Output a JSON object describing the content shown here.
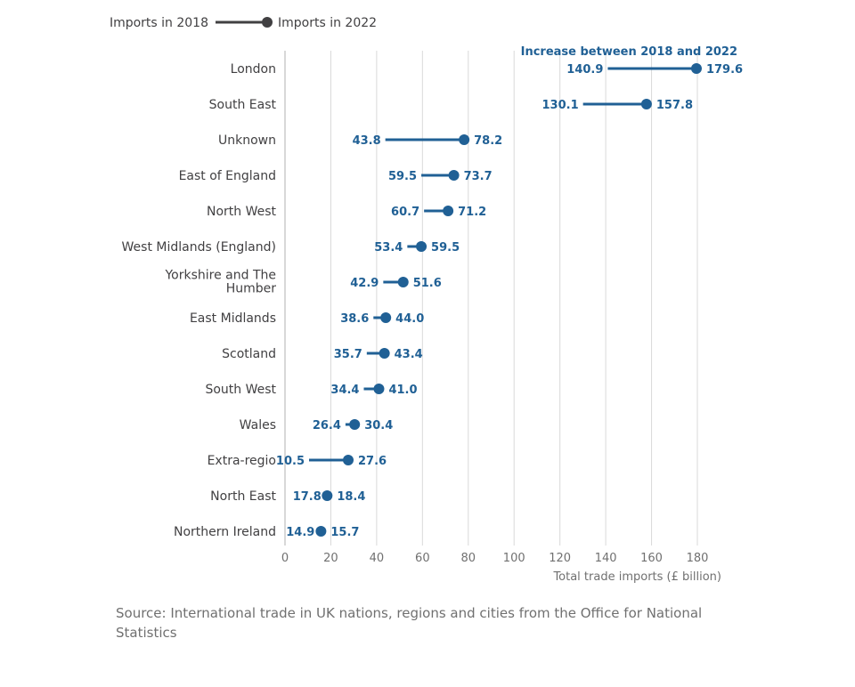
{
  "chart_data": {
    "type": "dumbbell",
    "legend": {
      "start_label": "Imports in 2018",
      "end_label": "Imports in 2022",
      "placement": "top-left"
    },
    "annotation": "Increase between 2018 and 2022",
    "xlabel": "Total trade imports (£ billion)",
    "xlim": [
      0,
      180
    ],
    "xticks": [
      0,
      20,
      40,
      60,
      80,
      100,
      120,
      140,
      160,
      180
    ],
    "grid": true,
    "categories": [
      "London",
      "South East",
      "Unknown",
      "East of England",
      "North West",
      "West Midlands (England)",
      [
        "Yorkshire and The",
        "Humber"
      ],
      "East Midlands",
      "Scotland",
      "South West",
      "Wales",
      "Extra-regio",
      "North East",
      "Northern Ireland"
    ],
    "series": [
      {
        "name": "Imports in 2018",
        "values": [
          140.9,
          130.1,
          43.8,
          59.5,
          60.7,
          53.4,
          42.9,
          38.6,
          35.7,
          34.4,
          26.4,
          10.5,
          17.8,
          14.9
        ]
      },
      {
        "name": "Imports in 2022",
        "values": [
          179.6,
          157.8,
          78.2,
          73.7,
          71.2,
          59.5,
          51.6,
          44.0,
          43.4,
          41.0,
          30.4,
          27.6,
          18.4,
          15.7
        ]
      }
    ],
    "value_labels_2018": [
      "140.9",
      "130.1",
      "43.8",
      "59.5",
      "60.7",
      "53.4",
      "42.9",
      "38.6",
      "35.7",
      "34.4",
      "26.4",
      "10.5",
      "17.8",
      "14.9"
    ],
    "value_labels_2022": [
      "179.6",
      "157.8",
      "78.2",
      "73.7",
      "71.2",
      "59.5",
      "51.6",
      "44.0",
      "43.4",
      "41.0",
      "30.4",
      "27.6",
      "18.4",
      "15.7"
    ],
    "colors": {
      "series": "#206095",
      "legend": "#414042",
      "axis_text": "#414042",
      "grid": "#d9d9d9",
      "source": "#707070"
    }
  },
  "source": "Source: International trade in UK nations, regions and cities from the Office for National Statistics"
}
